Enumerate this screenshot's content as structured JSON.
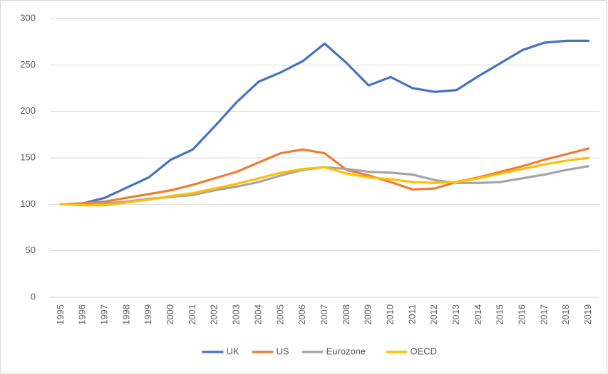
{
  "chart_data": {
    "type": "line",
    "categories": [
      "1995",
      "1996",
      "1997",
      "1998",
      "1999",
      "2000",
      "2001",
      "2002",
      "2003",
      "2004",
      "2005",
      "2006",
      "2007",
      "2008",
      "2009",
      "2010",
      "2011",
      "2012",
      "2013",
      "2014",
      "2015",
      "2016",
      "2017",
      "2018",
      "2019"
    ],
    "series": [
      {
        "name": "UK",
        "color": "#4472c4",
        "values": [
          100,
          101,
          107,
          118,
          129,
          148,
          159,
          184,
          210,
          232,
          242,
          254,
          273,
          252,
          228,
          237,
          225,
          221,
          223,
          238,
          252,
          266,
          274,
          276,
          276
        ]
      },
      {
        "name": "US",
        "color": "#ed7d31",
        "values": [
          100,
          101,
          103,
          107,
          111,
          115,
          121,
          128,
          135,
          145,
          155,
          159,
          155,
          137,
          131,
          124,
          116,
          117,
          124,
          129,
          135,
          141,
          148,
          154,
          160
        ]
      },
      {
        "name": "Eurozone",
        "color": "#a5a5a5",
        "values": [
          100,
          100,
          101,
          103,
          106,
          108,
          110,
          115,
          119,
          124,
          131,
          137,
          140,
          138,
          135,
          134,
          132,
          126,
          123,
          123,
          124,
          128,
          132,
          137,
          141
        ]
      },
      {
        "name": "OECD",
        "color": "#ffc000",
        "values": [
          100,
          99,
          99,
          102,
          105,
          109,
          112,
          117,
          122,
          128,
          134,
          138,
          140,
          133,
          129,
          127,
          124,
          123,
          124,
          128,
          133,
          138,
          143,
          147,
          150
        ]
      }
    ],
    "ylim": [
      0,
      300
    ],
    "yticks": [
      0,
      50,
      100,
      150,
      200,
      250,
      300
    ],
    "grid": true,
    "legend": "bottom"
  }
}
